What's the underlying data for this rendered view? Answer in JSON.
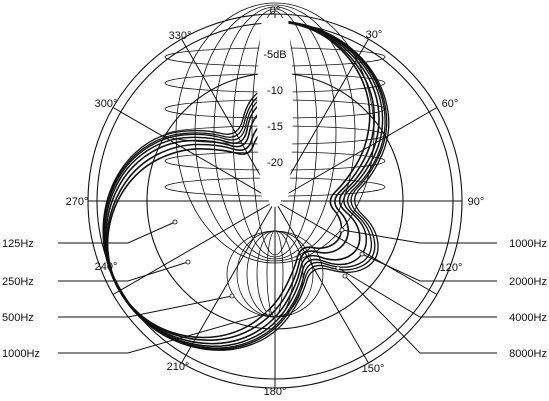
{
  "chart_data": {
    "type": "polar",
    "title": "",
    "angle_labels": [
      "0°",
      "30°",
      "60°",
      "90°",
      "120°",
      "150°",
      "180°",
      "210°",
      "240°",
      "270°",
      "300°",
      "330°"
    ],
    "angles_deg": [
      0,
      30,
      60,
      90,
      120,
      150,
      180,
      210,
      240,
      270,
      300,
      330
    ],
    "radial_labels": [
      "-5dB",
      "-10",
      "-15",
      "-20"
    ],
    "radial_db": [
      -5,
      -10,
      -15,
      -20
    ],
    "radial_range_db": [
      -25,
      0
    ],
    "theta_step_deg": 15,
    "series": [
      {
        "name": "125Hz",
        "side": "left",
        "response_db": [
          0,
          -0.4,
          -1.6,
          -3.6,
          -6.6,
          -11,
          -15,
          -10.5,
          -8.5,
          -10.5,
          -15,
          -11,
          -6.6,
          -3.6,
          -1.6,
          -0.4,
          0,
          -0.4,
          -1.6,
          -3.6,
          -6.6,
          -11,
          -15,
          -10.5,
          -8.5
        ]
      },
      {
        "name": "250Hz",
        "side": "left",
        "response_db": [
          0,
          -0.4,
          -1.7,
          -3.8,
          -7,
          -11.5,
          -15.5,
          -11,
          -9,
          -11,
          -15.5,
          -11.5,
          -7,
          -3.8,
          -1.7,
          -0.4,
          0,
          -0.4,
          -1.7,
          -3.8,
          -7,
          -11.5,
          -15.5,
          -11,
          -9
        ]
      },
      {
        "name": "500Hz",
        "side": "left",
        "response_db": [
          0,
          -0.4,
          -1.8,
          -4,
          -7.3,
          -11.8,
          -16,
          -11.5,
          -9.5,
          -11.5,
          -16,
          -11.8,
          -7.3,
          -4,
          -1.8,
          -0.4,
          0,
          -0.4,
          -1.8,
          -4,
          -7.3,
          -11.8,
          -16,
          -11.5,
          -9.5
        ]
      },
      {
        "name": "1000Hz",
        "side": "left",
        "response_db": [
          0,
          -0.5,
          -2,
          -4.3,
          -7.8,
          -12.5,
          -16.5,
          -12,
          -10.5,
          -12,
          -16.5,
          -12.5,
          -7.8,
          -4.3,
          -2,
          -0.5,
          0,
          -0.5,
          -2,
          -4.3,
          -7.8,
          -12.5,
          -16.5,
          -12,
          -10.5
        ]
      },
      {
        "name": "1000Hz",
        "side": "right",
        "response_db": [
          0,
          -0.5,
          -2,
          -4.3,
          -7.8,
          -12.5,
          -16.5,
          -12,
          -10.5,
          -12,
          -16.5,
          -12.5,
          -7.8,
          -4.3,
          -2,
          -0.5,
          0,
          -0.5,
          -2,
          -4.3,
          -7.8,
          -12.5,
          -16.5,
          -12,
          -10.5
        ]
      },
      {
        "name": "2000Hz",
        "side": "right",
        "response_db": [
          0,
          -0.6,
          -2.3,
          -4.8,
          -8.5,
          -13.2,
          -17,
          -13,
          -11.5,
          -13,
          -17,
          -13.2,
          -8.5,
          -4.8,
          -2.3,
          -0.6,
          0,
          -0.6,
          -2.3,
          -4.8,
          -8.5,
          -13.2,
          -17,
          -13,
          -11.5
        ]
      },
      {
        "name": "4000Hz",
        "side": "right",
        "response_db": [
          0,
          -0.7,
          -2.7,
          -5.5,
          -9.5,
          -14,
          -17.5,
          -14.5,
          -13.5,
          -14.5,
          -17.5,
          -14,
          -9.5,
          -5.5,
          -2.7,
          -0.7,
          0,
          -0.7,
          -2.7,
          -5.5,
          -9.5,
          -14,
          -17.5,
          -14.5,
          -13.5
        ]
      },
      {
        "name": "8000Hz",
        "side": "right",
        "response_db": [
          0,
          -0.8,
          -3,
          -6.2,
          -10.5,
          -15,
          -18,
          -15.5,
          -14.5,
          -15.5,
          -18,
          -15,
          -10.5,
          -6.2,
          -3,
          -0.8,
          0,
          -0.8,
          -3,
          -6.2,
          -10.5,
          -15,
          -18,
          -15.5,
          -14.5
        ]
      }
    ]
  }
}
